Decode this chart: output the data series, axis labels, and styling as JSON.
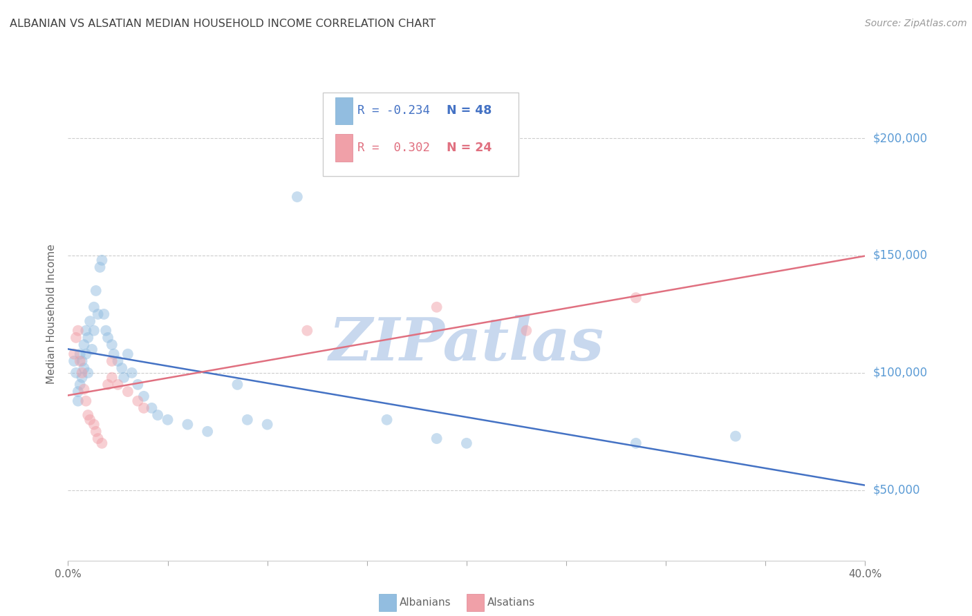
{
  "title": "ALBANIAN VS ALSATIAN MEDIAN HOUSEHOLD INCOME CORRELATION CHART",
  "source": "Source: ZipAtlas.com",
  "ylabel": "Median Household Income",
  "xlim": [
    0.0,
    0.4
  ],
  "ylim": [
    20000,
    230000
  ],
  "ytick_values": [
    50000,
    100000,
    150000,
    200000
  ],
  "ytick_labels": [
    "$50,000",
    "$100,000",
    "$150,000",
    "$200,000"
  ],
  "xtick_values": [
    0.0,
    0.05,
    0.1,
    0.15,
    0.2,
    0.25,
    0.3,
    0.35,
    0.4
  ],
  "xtick_labels": [
    "0.0%",
    "",
    "",
    "",
    "",
    "",
    "",
    "",
    "40.0%"
  ],
  "albanian_color": "#92bde0",
  "alsatian_color": "#f0a0a8",
  "albanian_line_color": "#4472c4",
  "alsatian_line_color": "#e07080",
  "r_albanian": -0.234,
  "n_albanian": 48,
  "r_alsatian": 0.302,
  "n_alsatian": 24,
  "watermark": "ZIPatlas",
  "watermark_color": "#c8d8ee",
  "background_color": "#ffffff",
  "ylabel_color": "#666666",
  "ytick_color": "#5b9bd5",
  "xtick_color": "#666666",
  "title_color": "#404040",
  "albanian_x": [
    0.003,
    0.004,
    0.005,
    0.005,
    0.006,
    0.006,
    0.007,
    0.007,
    0.008,
    0.008,
    0.009,
    0.009,
    0.01,
    0.01,
    0.011,
    0.012,
    0.013,
    0.013,
    0.014,
    0.015,
    0.016,
    0.017,
    0.018,
    0.019,
    0.02,
    0.022,
    0.023,
    0.025,
    0.027,
    0.028,
    0.03,
    0.032,
    0.035,
    0.038,
    0.042,
    0.045,
    0.05,
    0.06,
    0.07,
    0.085,
    0.09,
    0.1,
    0.115,
    0.16,
    0.185,
    0.2,
    0.285,
    0.335
  ],
  "albanian_y": [
    105000,
    100000,
    92000,
    88000,
    108000,
    95000,
    105000,
    98000,
    112000,
    102000,
    118000,
    108000,
    115000,
    100000,
    122000,
    110000,
    128000,
    118000,
    135000,
    125000,
    145000,
    148000,
    125000,
    118000,
    115000,
    112000,
    108000,
    105000,
    102000,
    98000,
    108000,
    100000,
    95000,
    90000,
    85000,
    82000,
    80000,
    78000,
    75000,
    95000,
    80000,
    78000,
    175000,
    80000,
    72000,
    70000,
    70000,
    73000
  ],
  "alsatian_x": [
    0.003,
    0.004,
    0.005,
    0.006,
    0.007,
    0.008,
    0.009,
    0.01,
    0.011,
    0.013,
    0.014,
    0.015,
    0.017,
    0.02,
    0.022,
    0.022,
    0.025,
    0.03,
    0.035,
    0.038,
    0.12,
    0.185,
    0.23,
    0.285
  ],
  "alsatian_y": [
    108000,
    115000,
    118000,
    105000,
    100000,
    93000,
    88000,
    82000,
    80000,
    78000,
    75000,
    72000,
    70000,
    95000,
    105000,
    98000,
    95000,
    92000,
    88000,
    85000,
    118000,
    128000,
    118000,
    132000
  ],
  "marker_size": 130,
  "marker_alpha": 0.5,
  "line_width": 1.8,
  "legend_r_albanian": "R = -0.234",
  "legend_n_albanian": "N = 48",
  "legend_r_alsatian": "R =  0.302",
  "legend_n_alsatian": "N = 24"
}
